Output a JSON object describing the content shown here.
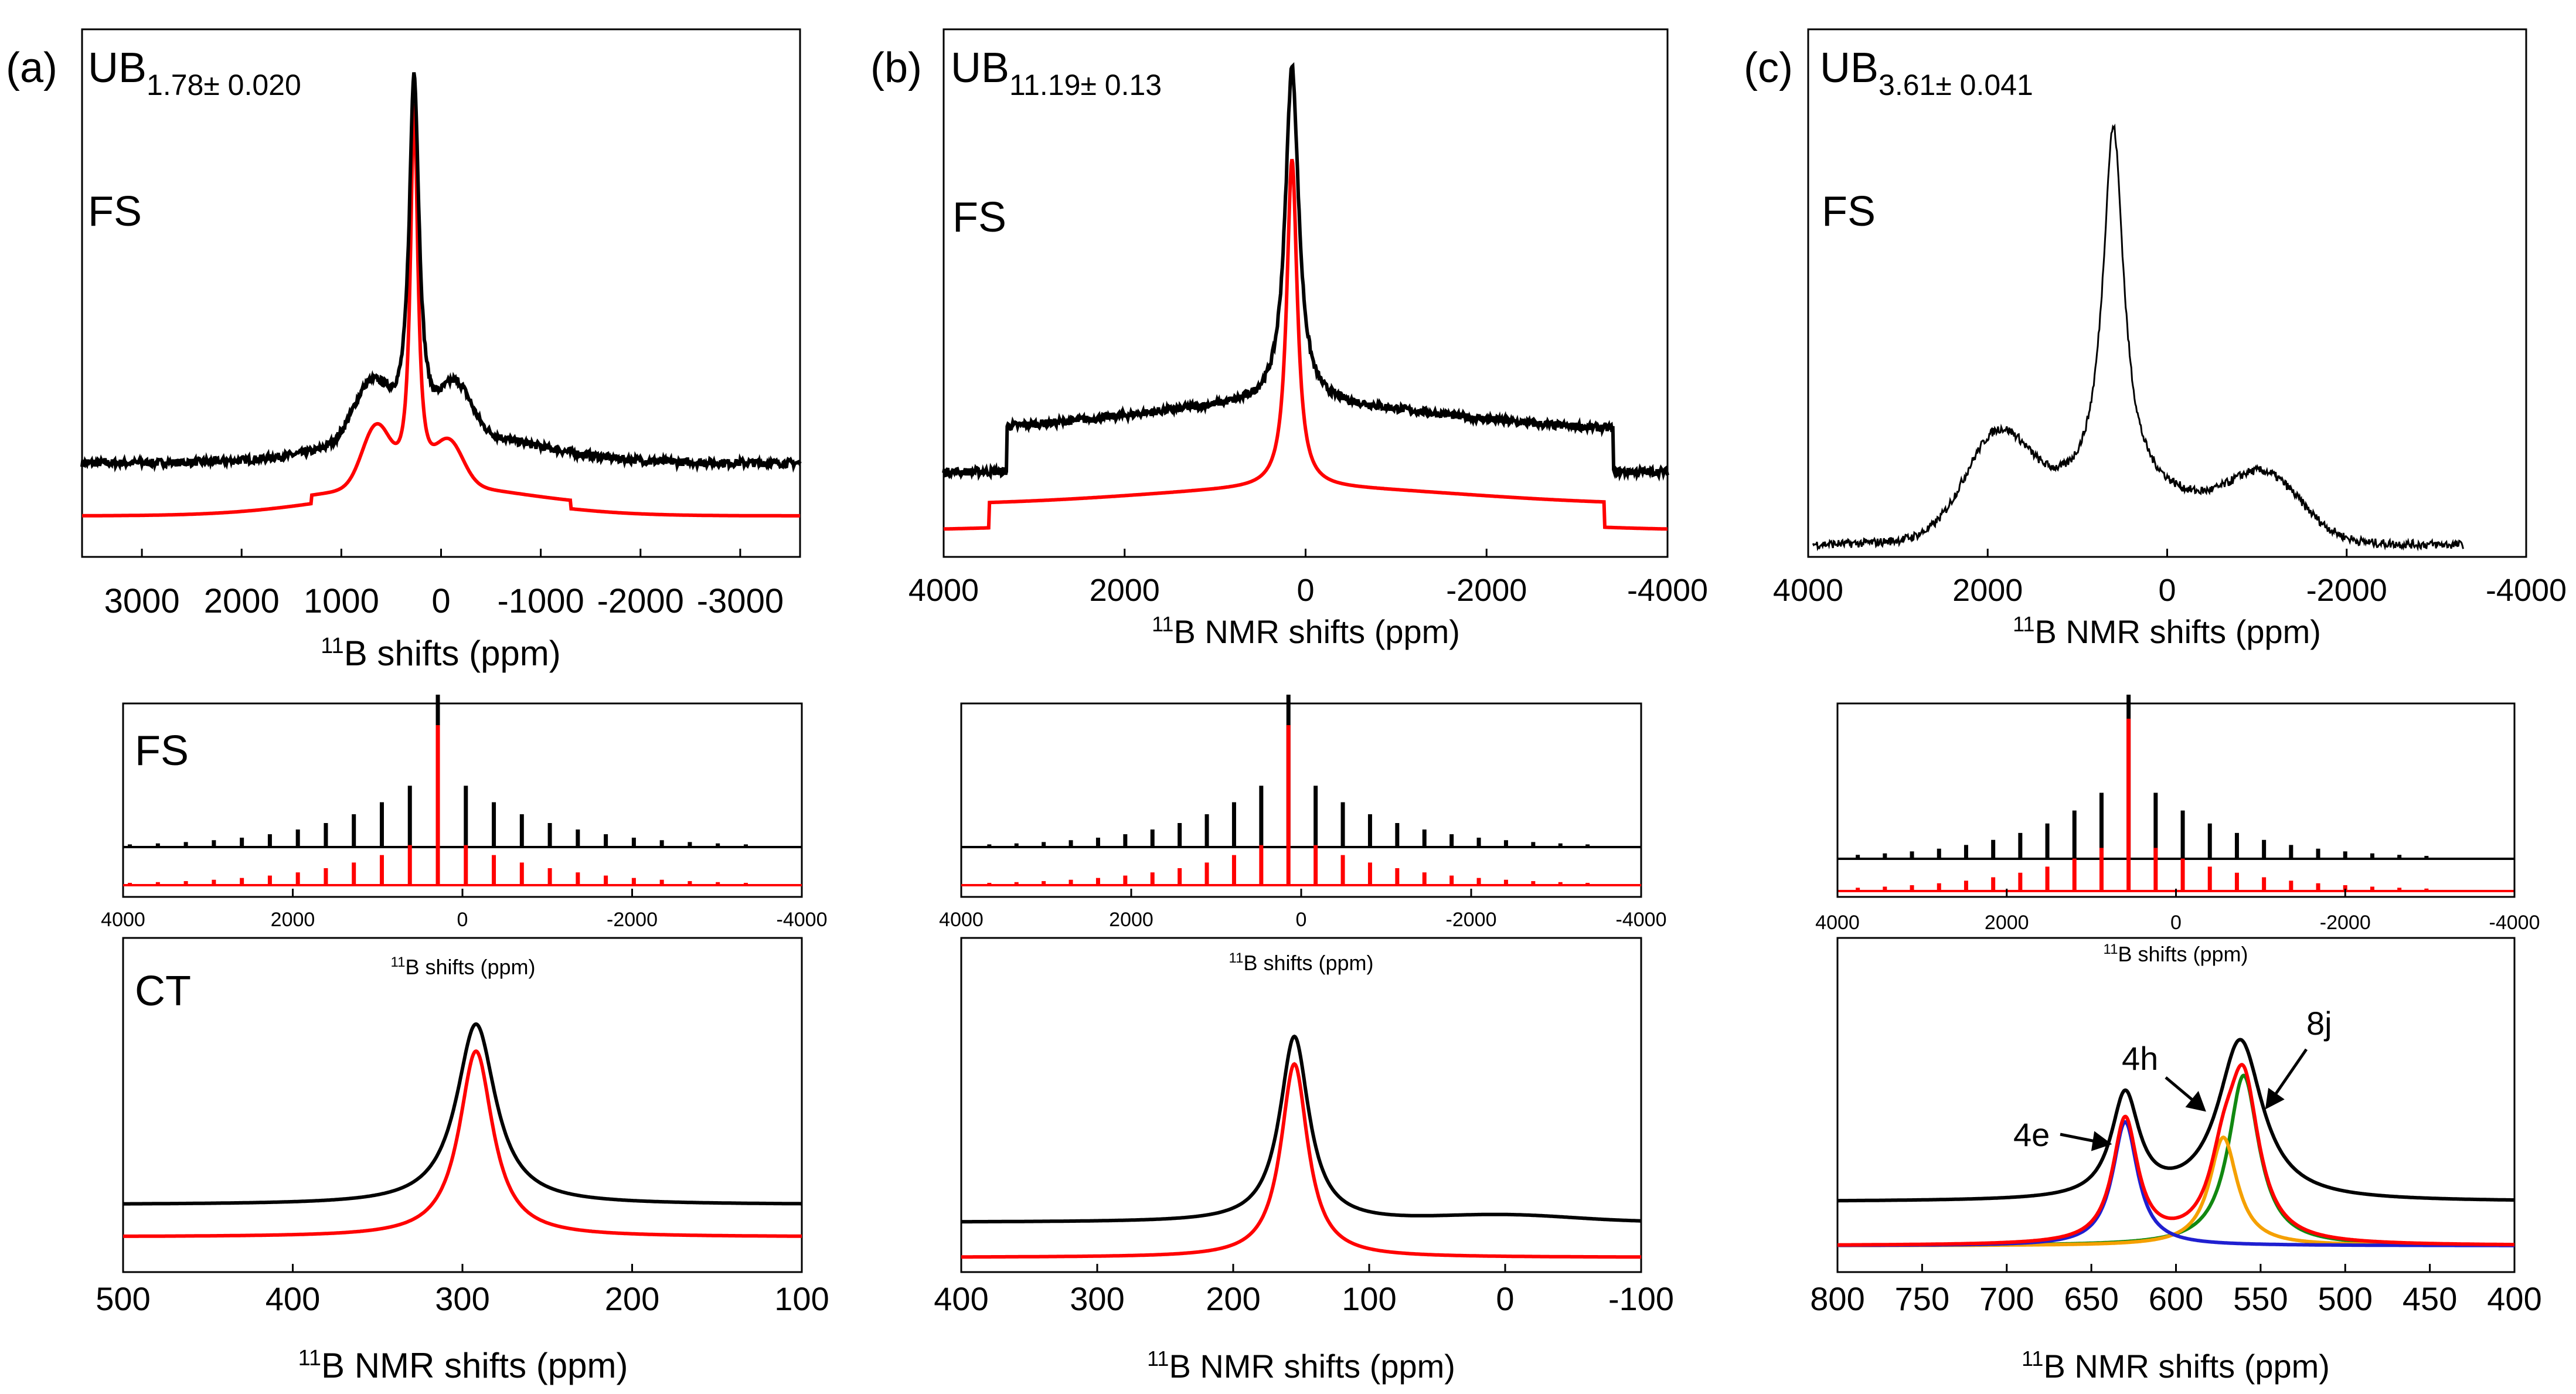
{
  "figure": {
    "colors": {
      "experiment": "#000000",
      "simulation": "#ff0000",
      "site_4e": "#1f1fd0",
      "site_4h": "#f5a000",
      "site_8j": "#118811"
    }
  },
  "panels": [
    {
      "letter": "(a)",
      "formula": {
        "main": "UB",
        "sub": "1.78± 0.020"
      },
      "top_label": "FS",
      "mid_label": "FS",
      "bottom_label": "CT",
      "top_xlabel": "B shifts (ppm)",
      "mid_xlabel": "B shifts (ppm)",
      "bottom_xlabel": "B NMR shifts (ppm)"
    },
    {
      "letter": "(b)",
      "formula": {
        "main": "UB",
        "sub": "11.19± 0.13"
      },
      "top_label": "FS",
      "top_xlabel": "B NMR shifts (ppm)",
      "mid_xlabel": "B shifts (ppm)",
      "bottom_xlabel": "B NMR shifts (ppm)"
    },
    {
      "letter": "(c)",
      "formula": {
        "main": "UB",
        "sub": "3.61± 0.041"
      },
      "top_label": "FS",
      "top_xlabel": "B NMR shifts (ppm)",
      "mid_xlabel": "B shifts (ppm)",
      "bottom_xlabel": "B NMR shifts (ppm)",
      "annotations": [
        "4e",
        "4h",
        "8j"
      ]
    }
  ],
  "chart_data": [
    {
      "id": "a-top",
      "type": "line",
      "title": "(a) UB1.78± 0.020 FS",
      "xlabel": "11B shifts (ppm)",
      "ylabel": "",
      "xlim": [
        3600,
        -3600
      ],
      "xticks": [
        3000,
        2000,
        1000,
        0,
        -1000,
        -2000,
        -3000
      ],
      "peaks": [
        {
          "pos": 270,
          "hw": 60,
          "h": 0.85
        }
      ],
      "series": [
        {
          "name": "experiment",
          "color": "#000000",
          "offset": 0.12,
          "pattern": "fs_a"
        },
        {
          "name": "simulation",
          "color": "#ff0000",
          "offset": 0.0,
          "pattern": "fs_a"
        }
      ]
    },
    {
      "id": "b-top",
      "type": "line",
      "title": "(b) UB11.19± 0.13 FS",
      "xlabel": "11B NMR shifts (ppm)",
      "ylabel": "",
      "xlim": [
        4000,
        -4000
      ],
      "xticks": [
        4000,
        2000,
        0,
        -2000,
        -4000
      ],
      "peaks": [
        {
          "pos": 150,
          "hw": 90,
          "h": 0.8
        }
      ],
      "series": [
        {
          "name": "experiment",
          "color": "#000000",
          "offset": 0.12,
          "pattern": "fs_b"
        },
        {
          "name": "simulation",
          "color": "#ff0000",
          "offset": 0.0,
          "pattern": "fs_b"
        }
      ]
    },
    {
      "id": "c-top",
      "type": "line",
      "title": "(c) UB3.61± 0.041 FS",
      "xlabel": "11B NMR shifts (ppm)",
      "ylabel": "",
      "xlim": [
        4000,
        -4000
      ],
      "xticks": [
        4000,
        2000,
        0,
        -2000,
        -4000
      ],
      "peaks": [
        {
          "pos": 600,
          "hw": 130,
          "h": 0.9
        }
      ],
      "series": [
        {
          "name": "experiment",
          "color": "#000000",
          "offset": 0.0,
          "pattern": "fs_c"
        }
      ]
    },
    {
      "id": "a-mid",
      "type": "line",
      "xlabel": "11B shifts (ppm)",
      "xlim": [
        4000,
        -4000
      ],
      "xticks": [
        4000,
        2000,
        0,
        -2000,
        -4000
      ],
      "sideband_center": 290,
      "sideband_spacing": 330,
      "series": [
        {
          "name": "experiment",
          "color": "#000000",
          "offset": 0.2
        },
        {
          "name": "simulation",
          "color": "#ff0000",
          "offset": 0.0
        }
      ]
    },
    {
      "id": "b-mid",
      "type": "line",
      "xlabel": "11B shifts (ppm)",
      "xlim": [
        4000,
        -4000
      ],
      "xticks": [
        4000,
        2000,
        0,
        -2000,
        -4000
      ],
      "sideband_center": 150,
      "sideband_spacing": 320,
      "series": [
        {
          "name": "experiment",
          "color": "#000000",
          "offset": 0.2
        },
        {
          "name": "simulation",
          "color": "#ff0000",
          "offset": 0.0
        }
      ]
    },
    {
      "id": "c-mid",
      "type": "line",
      "xlabel": "11B shifts (ppm)",
      "xlim": [
        4000,
        -4000
      ],
      "xticks": [
        4000,
        2000,
        0,
        -2000,
        -4000
      ],
      "sideband_center": 560,
      "sideband_spacing": 320,
      "series": [
        {
          "name": "experiment",
          "color": "#000000",
          "offset": 0.2
        },
        {
          "name": "simulation",
          "color": "#ff0000",
          "offset": 0.0
        }
      ]
    },
    {
      "id": "a-bottom",
      "type": "line",
      "title": "CT",
      "xlabel": "11B NMR shifts (ppm)",
      "xlim": [
        500,
        100
      ],
      "xticks": [
        500,
        400,
        300,
        200,
        100
      ],
      "peaks": [
        {
          "pos": 292,
          "hw": 12,
          "h": 0.78
        }
      ],
      "series": [
        {
          "name": "experiment",
          "color": "#000000",
          "offset": 0.14
        },
        {
          "name": "simulation",
          "color": "#ff0000",
          "offset": 0.0
        }
      ]
    },
    {
      "id": "b-bottom",
      "type": "line",
      "xlabel": "11B NMR shifts (ppm)",
      "xlim": [
        400,
        -100
      ],
      "xticks": [
        400,
        300,
        200,
        100,
        0,
        -100
      ],
      "peaks": [
        {
          "pos": 155,
          "hw": 12,
          "h": 0.82
        },
        {
          "pos": 0,
          "hw": 40,
          "h": 0.02
        }
      ],
      "series": [
        {
          "name": "experiment",
          "color": "#000000",
          "offset": 0.14
        },
        {
          "name": "simulation",
          "color": "#ff0000",
          "offset": 0.0
        }
      ]
    },
    {
      "id": "c-bottom",
      "type": "line",
      "xlabel": "11B NMR shifts (ppm)",
      "xlim": [
        800,
        400
      ],
      "xticks": [
        800,
        750,
        700,
        650,
        600,
        550,
        500,
        450,
        400
      ],
      "peaks": [
        {
          "pos": 630,
          "hw": 9,
          "h": 0.5
        },
        {
          "pos": 572,
          "hw": 11,
          "h": 0.5
        },
        {
          "pos": 560,
          "hw": 12,
          "h": 0.72
        }
      ],
      "series": [
        {
          "name": "experiment",
          "color": "#000000",
          "offset": 0.16
        },
        {
          "name": "simulation",
          "color": "#ff0000",
          "offset": 0.0
        },
        {
          "name": "4e",
          "color": "#1f1fd0",
          "offset": 0.0
        },
        {
          "name": "4h",
          "color": "#f5a000",
          "offset": 0.0
        },
        {
          "name": "8j",
          "color": "#118811",
          "offset": 0.0
        }
      ]
    }
  ]
}
